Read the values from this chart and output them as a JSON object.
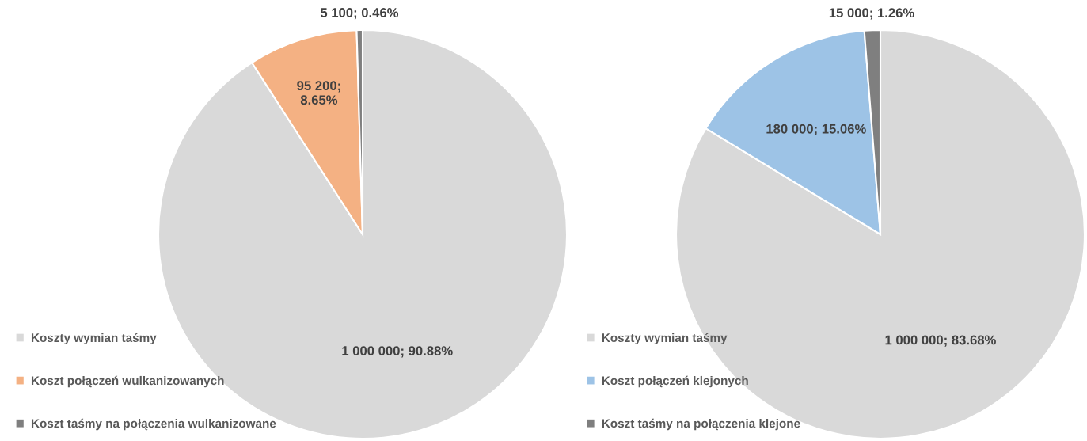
{
  "chart_data": [
    {
      "type": "pie",
      "categories": [
        "Koszty wymian taśmy",
        "Koszt połączeń wulkanizowanych",
        "Koszt taśmy na połączenia wulkanizowane"
      ],
      "values": [
        1000000,
        95200,
        5100
      ],
      "colors": [
        "#d9d9d9",
        "#f4b183",
        "#7f7f7f"
      ],
      "value_labels": [
        "1 000 000; 90.88%",
        "95 200; 8.65%",
        "5 100; 0.46%"
      ],
      "legend": "left"
    },
    {
      "type": "pie",
      "categories": [
        "Koszty wymian taśmy",
        "Koszt połączeń klejonych",
        "Koszt taśmy na połączenia klejone"
      ],
      "values": [
        1000000,
        180000,
        15000
      ],
      "colors": [
        "#d9d9d9",
        "#9dc3e6",
        "#7f7f7f"
      ],
      "value_labels": [
        "1 000 000; 83.68%",
        "180 000; 15.06%",
        "15 000; 1.26%"
      ],
      "legend": "left"
    }
  ]
}
